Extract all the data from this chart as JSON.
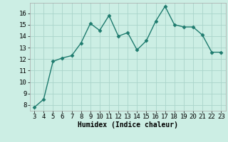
{
  "x": [
    3,
    4,
    5,
    6,
    7,
    8,
    9,
    10,
    11,
    12,
    13,
    14,
    15,
    16,
    17,
    18,
    19,
    20,
    21,
    22,
    23
  ],
  "y": [
    7.8,
    8.5,
    11.8,
    12.1,
    12.3,
    13.4,
    15.1,
    14.5,
    15.8,
    14.0,
    14.3,
    12.8,
    13.6,
    15.3,
    16.6,
    15.0,
    14.8,
    14.8,
    14.1,
    12.6,
    12.6
  ],
  "line_color": "#1e7b6e",
  "marker": "D",
  "marker_size": 2.5,
  "bg_color": "#cceee4",
  "grid_color": "#aad4ca",
  "xlabel": "Humidex (Indice chaleur)",
  "xlim": [
    2.5,
    23.5
  ],
  "ylim": [
    7.5,
    16.9
  ],
  "xticks": [
    3,
    4,
    5,
    6,
    7,
    8,
    9,
    10,
    11,
    12,
    13,
    14,
    15,
    16,
    17,
    18,
    19,
    20,
    21,
    22,
    23
  ],
  "yticks": [
    8,
    9,
    10,
    11,
    12,
    13,
    14,
    15,
    16
  ],
  "xlabel_fontsize": 7,
  "tick_fontsize": 6.5,
  "line_width": 1.0
}
